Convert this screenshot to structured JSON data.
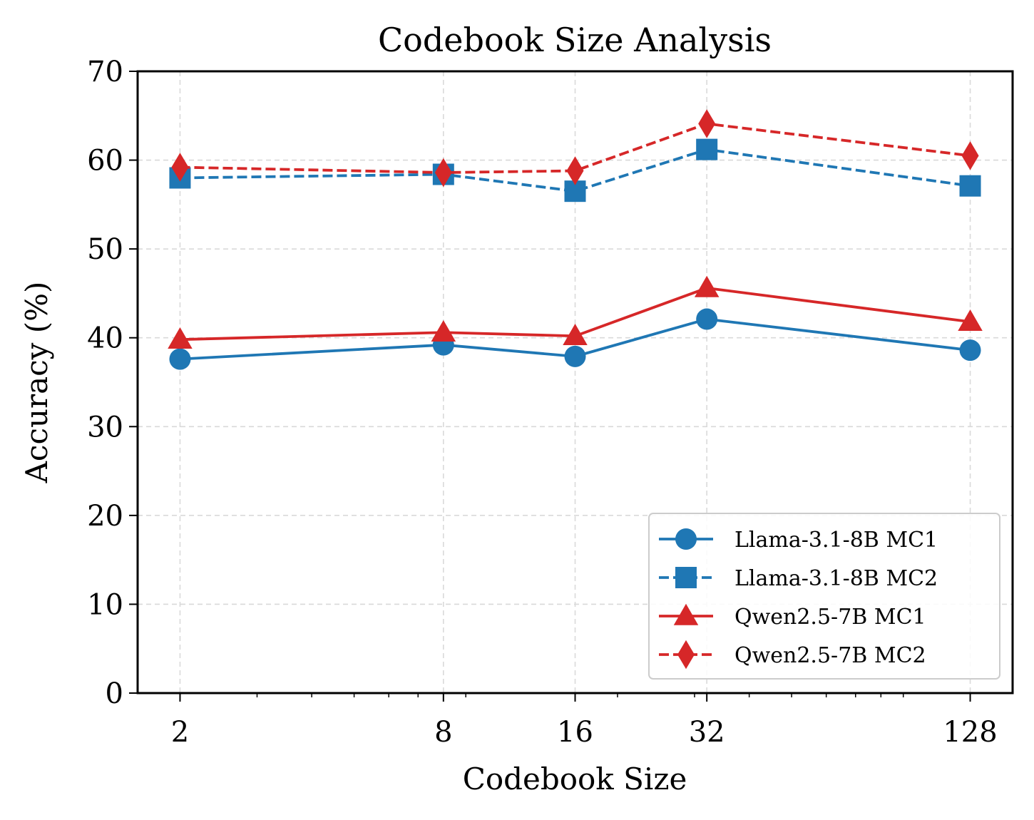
{
  "chart_data": {
    "type": "line",
    "title": "Codebook Size Analysis",
    "xlabel": "Codebook Size",
    "ylabel": "Accuracy (%)",
    "x_scale": "log2",
    "x": [
      2,
      8,
      16,
      32,
      128
    ],
    "x_tick_labels": [
      "2",
      "8",
      "16",
      "32",
      "128"
    ],
    "xlim": [
      1.6,
      160
    ],
    "ylim": [
      0,
      70
    ],
    "y_ticks": [
      0,
      10,
      20,
      30,
      40,
      50,
      60,
      70
    ],
    "y_tick_labels": [
      "0",
      "10",
      "20",
      "30",
      "40",
      "50",
      "60",
      "70"
    ],
    "grid": true,
    "legend_position": "lower-right",
    "series": [
      {
        "name": "Llama-3.1-8B MC1",
        "values": [
          37.6,
          39.2,
          37.9,
          42.1,
          38.6
        ],
        "color": "#1f77b4",
        "marker": "circle",
        "linestyle": "solid"
      },
      {
        "name": "Llama-3.1-8B MC2",
        "values": [
          58.0,
          58.4,
          56.5,
          61.2,
          57.1
        ],
        "color": "#1f77b4",
        "marker": "square",
        "linestyle": "dashed"
      },
      {
        "name": "Qwen2.5-7B MC1",
        "values": [
          39.8,
          40.6,
          40.2,
          45.6,
          41.8
        ],
        "color": "#d62728",
        "marker": "triangle",
        "linestyle": "solid"
      },
      {
        "name": "Qwen2.5-7B MC2",
        "values": [
          59.2,
          58.6,
          58.8,
          64.1,
          60.5
        ],
        "color": "#d62728",
        "marker": "diamond",
        "linestyle": "dashed"
      }
    ]
  }
}
